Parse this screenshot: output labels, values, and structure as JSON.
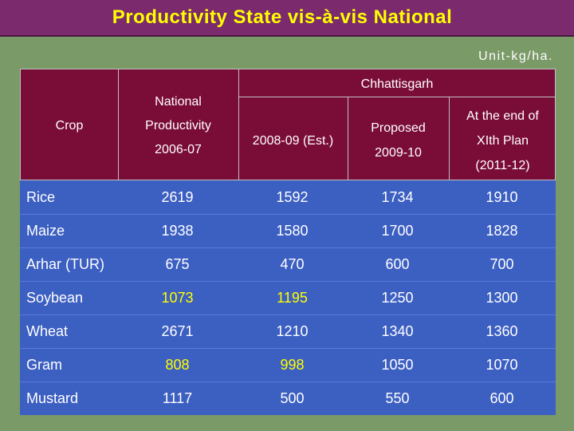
{
  "title": "Productivity State vis-à-vis National",
  "unit": "Unit-kg/ha.",
  "header": {
    "crop": "Crop",
    "national_line1": "National",
    "national_line2": "Productivity",
    "national_line3": "2006-07",
    "chhattisgarh": "Chhattisgarh",
    "est_label": "2008-09 (Est.)",
    "proposed_line1": "Proposed",
    "proposed_line2": "2009-10",
    "plan_line1": "At the end of",
    "plan_line2": "XIth Plan",
    "plan_line3": "(2011-12)"
  },
  "colors": {
    "highlight": "#ffff00",
    "text": "#ffffff",
    "header_bg": "#7a0c38",
    "body_bg": "#3c5fc2",
    "title_bg": "#7b2a6e",
    "slide_bg": "#7a9a68"
  },
  "rows": [
    {
      "crop": "Rice",
      "national": "2619",
      "est": "1592",
      "proposed": "1734",
      "plan": "1910",
      "hl_national": false,
      "hl_est": false
    },
    {
      "crop": "Maize",
      "national": "1938",
      "est": "1580",
      "proposed": "1700",
      "plan": "1828",
      "hl_national": false,
      "hl_est": false
    },
    {
      "crop": "Arhar (TUR)",
      "national": "675",
      "est": "470",
      "proposed": "600",
      "plan": "700",
      "hl_national": false,
      "hl_est": false
    },
    {
      "crop": "Soybean",
      "national": "1073",
      "est": "1195",
      "proposed": "1250",
      "plan": "1300",
      "hl_national": true,
      "hl_est": true
    },
    {
      "crop": "Wheat",
      "national": "2671",
      "est": "1210",
      "proposed": "1340",
      "plan": "1360",
      "hl_national": false,
      "hl_est": false
    },
    {
      "crop": "Gram",
      "national": "808",
      "est": "998",
      "proposed": "1050",
      "plan": "1070",
      "hl_national": true,
      "hl_est": true
    },
    {
      "crop": "Mustard",
      "national": "1117",
      "est": "500",
      "proposed": "550",
      "plan": "600",
      "hl_national": false,
      "hl_est": false
    }
  ]
}
